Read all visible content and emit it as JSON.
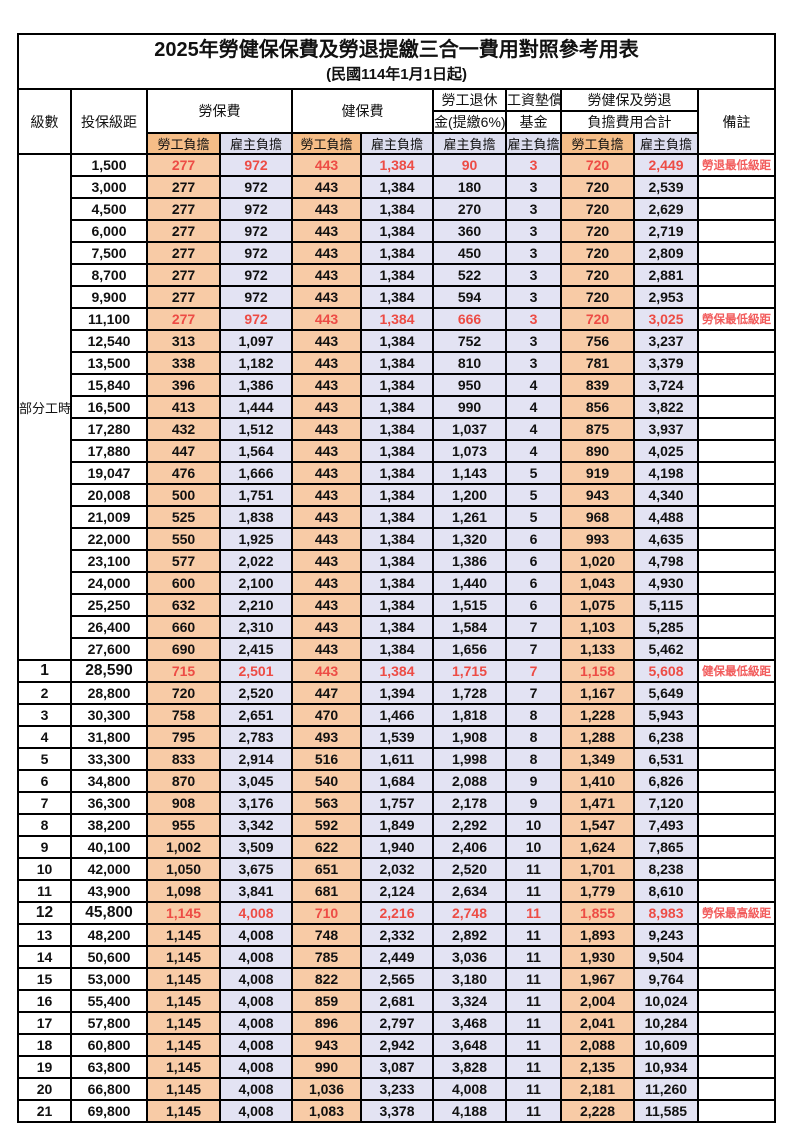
{
  "title": "2025年勞健保保費及勞退提繳三合一費用對照參考用表",
  "subtitle": "(民國114年1月1日起)",
  "header": {
    "level": "級數",
    "bracket": "投保級距",
    "labor": "勞保費",
    "health": "健保費",
    "pension_line1": "勞工退休",
    "pension_line2": "金(提繳6%)",
    "wage_fund_line1": "工資墊償",
    "wage_fund_line2": "基金",
    "total_line1": "勞健保及勞退",
    "total_line2": "負擔費用合計",
    "note": "備註",
    "employee": "勞工負擔",
    "employer": "雇主負擔"
  },
  "part_time_label": "部分工時",
  "colors": {
    "employee_header": "#F5BD87",
    "employer_header": "#DDDEEF",
    "employee_cell": "#F8CBA6",
    "employer_cell": "#E3E3F3",
    "highlight_red": "#ED4C45",
    "note_red": "#F25C5C"
  },
  "table": {
    "rows": [
      {
        "lv": "",
        "bk": "1,500",
        "c": [
          "277",
          "972",
          "443",
          "1,384",
          "90",
          "3",
          "720",
          "2,449"
        ],
        "nt": "勞退最低級距",
        "hl": true,
        "bd": false
      },
      {
        "lv": "",
        "bk": "3,000",
        "c": [
          "277",
          "972",
          "443",
          "1,384",
          "180",
          "3",
          "720",
          "2,539"
        ],
        "nt": "",
        "hl": false,
        "bd": false
      },
      {
        "lv": "",
        "bk": "4,500",
        "c": [
          "277",
          "972",
          "443",
          "1,384",
          "270",
          "3",
          "720",
          "2,629"
        ],
        "nt": "",
        "hl": false,
        "bd": false
      },
      {
        "lv": "",
        "bk": "6,000",
        "c": [
          "277",
          "972",
          "443",
          "1,384",
          "360",
          "3",
          "720",
          "2,719"
        ],
        "nt": "",
        "hl": false,
        "bd": false
      },
      {
        "lv": "",
        "bk": "7,500",
        "c": [
          "277",
          "972",
          "443",
          "1,384",
          "450",
          "3",
          "720",
          "2,809"
        ],
        "nt": "",
        "hl": false,
        "bd": false
      },
      {
        "lv": "",
        "bk": "8,700",
        "c": [
          "277",
          "972",
          "443",
          "1,384",
          "522",
          "3",
          "720",
          "2,881"
        ],
        "nt": "",
        "hl": false,
        "bd": false
      },
      {
        "lv": "",
        "bk": "9,900",
        "c": [
          "277",
          "972",
          "443",
          "1,384",
          "594",
          "3",
          "720",
          "2,953"
        ],
        "nt": "",
        "hl": false,
        "bd": false
      },
      {
        "lv": "",
        "bk": "11,100",
        "c": [
          "277",
          "972",
          "443",
          "1,384",
          "666",
          "3",
          "720",
          "3,025"
        ],
        "nt": "勞保最低級距",
        "hl": true,
        "bd": false
      },
      {
        "lv": "",
        "bk": "12,540",
        "c": [
          "313",
          "1,097",
          "443",
          "1,384",
          "752",
          "3",
          "756",
          "3,237"
        ],
        "nt": "",
        "hl": false,
        "bd": false
      },
      {
        "lv": "",
        "bk": "13,500",
        "c": [
          "338",
          "1,182",
          "443",
          "1,384",
          "810",
          "3",
          "781",
          "3,379"
        ],
        "nt": "",
        "hl": false,
        "bd": false
      },
      {
        "lv": "",
        "bk": "15,840",
        "c": [
          "396",
          "1,386",
          "443",
          "1,384",
          "950",
          "4",
          "839",
          "3,724"
        ],
        "nt": "",
        "hl": false,
        "bd": false
      },
      {
        "lv": "",
        "bk": "16,500",
        "c": [
          "413",
          "1,444",
          "443",
          "1,384",
          "990",
          "4",
          "856",
          "3,822"
        ],
        "nt": "",
        "hl": false,
        "bd": false
      },
      {
        "lv": "",
        "bk": "17,280",
        "c": [
          "432",
          "1,512",
          "443",
          "1,384",
          "1,037",
          "4",
          "875",
          "3,937"
        ],
        "nt": "",
        "hl": false,
        "bd": false
      },
      {
        "lv": "",
        "bk": "17,880",
        "c": [
          "447",
          "1,564",
          "443",
          "1,384",
          "1,073",
          "4",
          "890",
          "4,025"
        ],
        "nt": "",
        "hl": false,
        "bd": false
      },
      {
        "lv": "",
        "bk": "19,047",
        "c": [
          "476",
          "1,666",
          "443",
          "1,384",
          "1,143",
          "5",
          "919",
          "4,198"
        ],
        "nt": "",
        "hl": false,
        "bd": false
      },
      {
        "lv": "",
        "bk": "20,008",
        "c": [
          "500",
          "1,751",
          "443",
          "1,384",
          "1,200",
          "5",
          "943",
          "4,340"
        ],
        "nt": "",
        "hl": false,
        "bd": false
      },
      {
        "lv": "",
        "bk": "21,009",
        "c": [
          "525",
          "1,838",
          "443",
          "1,384",
          "1,261",
          "5",
          "968",
          "4,488"
        ],
        "nt": "",
        "hl": false,
        "bd": false
      },
      {
        "lv": "",
        "bk": "22,000",
        "c": [
          "550",
          "1,925",
          "443",
          "1,384",
          "1,320",
          "6",
          "993",
          "4,635"
        ],
        "nt": "",
        "hl": false,
        "bd": false
      },
      {
        "lv": "",
        "bk": "23,100",
        "c": [
          "577",
          "2,022",
          "443",
          "1,384",
          "1,386",
          "6",
          "1,020",
          "4,798"
        ],
        "nt": "",
        "hl": false,
        "bd": false
      },
      {
        "lv": "",
        "bk": "24,000",
        "c": [
          "600",
          "2,100",
          "443",
          "1,384",
          "1,440",
          "6",
          "1,043",
          "4,930"
        ],
        "nt": "",
        "hl": false,
        "bd": false
      },
      {
        "lv": "",
        "bk": "25,250",
        "c": [
          "632",
          "2,210",
          "443",
          "1,384",
          "1,515",
          "6",
          "1,075",
          "5,115"
        ],
        "nt": "",
        "hl": false,
        "bd": false
      },
      {
        "lv": "",
        "bk": "26,400",
        "c": [
          "660",
          "2,310",
          "443",
          "1,384",
          "1,584",
          "7",
          "1,103",
          "5,285"
        ],
        "nt": "",
        "hl": false,
        "bd": false
      },
      {
        "lv": "",
        "bk": "27,600",
        "c": [
          "690",
          "2,415",
          "443",
          "1,384",
          "1,656",
          "7",
          "1,133",
          "5,462"
        ],
        "nt": "",
        "hl": false,
        "bd": false
      },
      {
        "lv": "1",
        "bk": "28,590",
        "c": [
          "715",
          "2,501",
          "443",
          "1,384",
          "1,715",
          "7",
          "1,158",
          "5,608"
        ],
        "nt": "健保最低級距",
        "hl": true,
        "bd": true
      },
      {
        "lv": "2",
        "bk": "28,800",
        "c": [
          "720",
          "2,520",
          "447",
          "1,394",
          "1,728",
          "7",
          "1,167",
          "5,649"
        ],
        "nt": "",
        "hl": false,
        "bd": false
      },
      {
        "lv": "3",
        "bk": "30,300",
        "c": [
          "758",
          "2,651",
          "470",
          "1,466",
          "1,818",
          "8",
          "1,228",
          "5,943"
        ],
        "nt": "",
        "hl": false,
        "bd": false
      },
      {
        "lv": "4",
        "bk": "31,800",
        "c": [
          "795",
          "2,783",
          "493",
          "1,539",
          "1,908",
          "8",
          "1,288",
          "6,238"
        ],
        "nt": "",
        "hl": false,
        "bd": false
      },
      {
        "lv": "5",
        "bk": "33,300",
        "c": [
          "833",
          "2,914",
          "516",
          "1,611",
          "1,998",
          "8",
          "1,349",
          "6,531"
        ],
        "nt": "",
        "hl": false,
        "bd": false
      },
      {
        "lv": "6",
        "bk": "34,800",
        "c": [
          "870",
          "3,045",
          "540",
          "1,684",
          "2,088",
          "9",
          "1,410",
          "6,826"
        ],
        "nt": "",
        "hl": false,
        "bd": false
      },
      {
        "lv": "7",
        "bk": "36,300",
        "c": [
          "908",
          "3,176",
          "563",
          "1,757",
          "2,178",
          "9",
          "1,471",
          "7,120"
        ],
        "nt": "",
        "hl": false,
        "bd": false
      },
      {
        "lv": "8",
        "bk": "38,200",
        "c": [
          "955",
          "3,342",
          "592",
          "1,849",
          "2,292",
          "10",
          "1,547",
          "7,493"
        ],
        "nt": "",
        "hl": false,
        "bd": false
      },
      {
        "lv": "9",
        "bk": "40,100",
        "c": [
          "1,002",
          "3,509",
          "622",
          "1,940",
          "2,406",
          "10",
          "1,624",
          "7,865"
        ],
        "nt": "",
        "hl": false,
        "bd": false
      },
      {
        "lv": "10",
        "bk": "42,000",
        "c": [
          "1,050",
          "3,675",
          "651",
          "2,032",
          "2,520",
          "11",
          "1,701",
          "8,238"
        ],
        "nt": "",
        "hl": false,
        "bd": false
      },
      {
        "lv": "11",
        "bk": "43,900",
        "c": [
          "1,098",
          "3,841",
          "681",
          "2,124",
          "2,634",
          "11",
          "1,779",
          "8,610"
        ],
        "nt": "",
        "hl": false,
        "bd": false
      },
      {
        "lv": "12",
        "bk": "45,800",
        "c": [
          "1,145",
          "4,008",
          "710",
          "2,216",
          "2,748",
          "11",
          "1,855",
          "8,983"
        ],
        "nt": "勞保最高級距",
        "hl": true,
        "bd": true
      },
      {
        "lv": "13",
        "bk": "48,200",
        "c": [
          "1,145",
          "4,008",
          "748",
          "2,332",
          "2,892",
          "11",
          "1,893",
          "9,243"
        ],
        "nt": "",
        "hl": false,
        "bd": false
      },
      {
        "lv": "14",
        "bk": "50,600",
        "c": [
          "1,145",
          "4,008",
          "785",
          "2,449",
          "3,036",
          "11",
          "1,930",
          "9,504"
        ],
        "nt": "",
        "hl": false,
        "bd": false
      },
      {
        "lv": "15",
        "bk": "53,000",
        "c": [
          "1,145",
          "4,008",
          "822",
          "2,565",
          "3,180",
          "11",
          "1,967",
          "9,764"
        ],
        "nt": "",
        "hl": false,
        "bd": false
      },
      {
        "lv": "16",
        "bk": "55,400",
        "c": [
          "1,145",
          "4,008",
          "859",
          "2,681",
          "3,324",
          "11",
          "2,004",
          "10,024"
        ],
        "nt": "",
        "hl": false,
        "bd": false
      },
      {
        "lv": "17",
        "bk": "57,800",
        "c": [
          "1,145",
          "4,008",
          "896",
          "2,797",
          "3,468",
          "11",
          "2,041",
          "10,284"
        ],
        "nt": "",
        "hl": false,
        "bd": false
      },
      {
        "lv": "18",
        "bk": "60,800",
        "c": [
          "1,145",
          "4,008",
          "943",
          "2,942",
          "3,648",
          "11",
          "2,088",
          "10,609"
        ],
        "nt": "",
        "hl": false,
        "bd": false
      },
      {
        "lv": "19",
        "bk": "63,800",
        "c": [
          "1,145",
          "4,008",
          "990",
          "3,087",
          "3,828",
          "11",
          "2,135",
          "10,934"
        ],
        "nt": "",
        "hl": false,
        "bd": false
      },
      {
        "lv": "20",
        "bk": "66,800",
        "c": [
          "1,145",
          "4,008",
          "1,036",
          "3,233",
          "4,008",
          "11",
          "2,181",
          "11,260"
        ],
        "nt": "",
        "hl": false,
        "bd": false
      },
      {
        "lv": "21",
        "bk": "69,800",
        "c": [
          "1,145",
          "4,008",
          "1,083",
          "3,378",
          "4,188",
          "11",
          "2,228",
          "11,585"
        ],
        "nt": "",
        "hl": false,
        "bd": false
      }
    ]
  }
}
